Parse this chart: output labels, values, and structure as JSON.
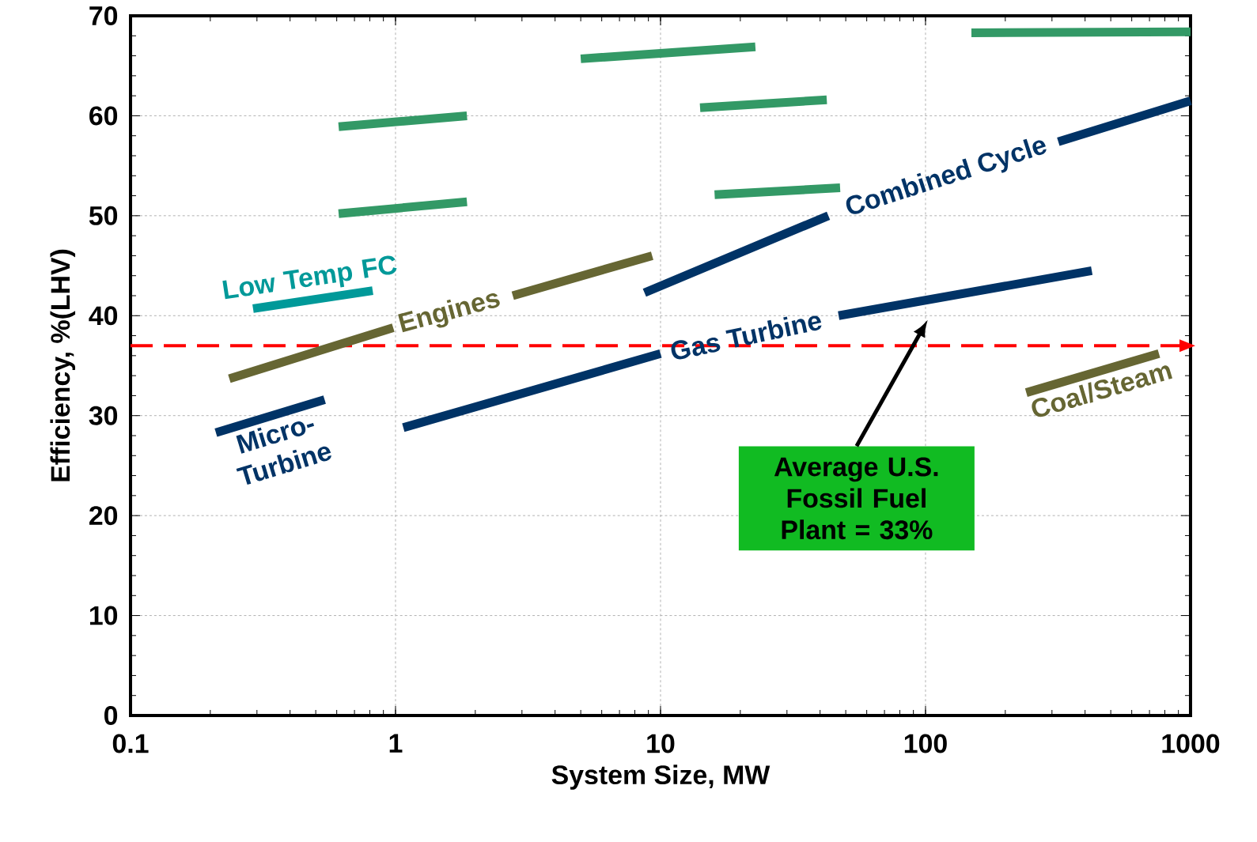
{
  "chart_data": {
    "type": "line",
    "xlabel": "System Size, MW",
    "ylabel": "Efficiency, %(LHV)",
    "log": "x",
    "xlim": [
      0.1,
      1000
    ],
    "ylim": [
      0,
      70
    ],
    "xticks": [
      0.1,
      1,
      10,
      100,
      1000
    ],
    "yticks": [
      0,
      10,
      20,
      30,
      40,
      50,
      60,
      70
    ],
    "grid": true,
    "marker": "none",
    "series": [
      {
        "color": "#339966",
        "x": [
          5,
          22.8,
          60,
          149,
          1000
        ],
        "values": [
          65.7,
          66.9,
          null,
          68.3,
          68.4
        ]
      },
      {
        "color": "#339966",
        "x": [
          0.61,
          1.86,
          5,
          14.1,
          42.4
        ],
        "values": [
          58.9,
          60.0,
          null,
          60.8,
          61.6
        ]
      },
      {
        "color": "#339966",
        "x": [
          0.61,
          1.86,
          5,
          16,
          47.6
        ],
        "values": [
          50.2,
          51.4,
          null,
          52.1,
          52.8
        ]
      },
      {
        "name": "Low Temp FC",
        "color": "#009999",
        "x": [
          0.29,
          0.82
        ],
        "values": [
          40.7,
          42.5
        ]
      },
      {
        "name": "Engines",
        "color": "#666633",
        "x": [
          0.236,
          0.98,
          1.6,
          2.77,
          9.3
        ],
        "values": [
          33.7,
          38.8,
          null,
          42.0,
          46.0
        ]
      },
      {
        "name": "Micro-Turbine",
        "color": "#003366",
        "x": [
          0.21,
          0.54
        ],
        "values": [
          28.3,
          31.6
        ]
      },
      {
        "name": "Gas Turbine",
        "color": "#003366",
        "x": [
          1.07,
          10,
          21,
          47,
          424
        ],
        "values": [
          28.8,
          36.2,
          null,
          40.0,
          44.5
        ]
      },
      {
        "name": "Combined Cycle",
        "color": "#003366",
        "x": [
          8.7,
          43,
          120,
          317,
          1000
        ],
        "values": [
          42.3,
          50.0,
          null,
          57.4,
          61.5
        ]
      },
      {
        "name": "Coal/Steam",
        "color": "#666633",
        "x": [
          240,
          760
        ],
        "values": [
          32.3,
          36.2
        ]
      }
    ],
    "ref_lines": [
      {
        "axis": "y",
        "value": 37,
        "color": "#ff0000",
        "line_style": "dashed"
      }
    ],
    "annotations": [
      "Average U.S. Fossil Fuel Plant = 33%"
    ]
  }
}
